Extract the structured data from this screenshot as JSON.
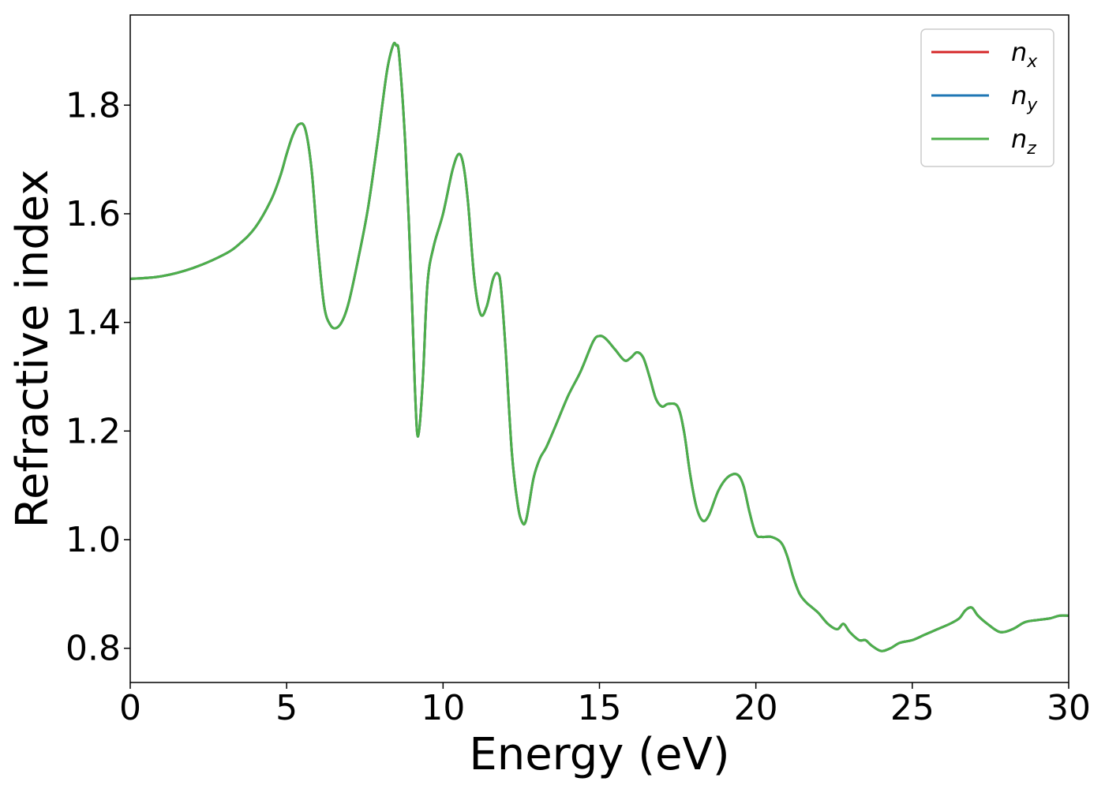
{
  "chart_data": {
    "type": "line",
    "xlabel": "Energy (eV)",
    "ylabel": "Refractive index",
    "xlim": [
      0,
      30
    ],
    "ylim": [
      0.737,
      1.966
    ],
    "xticks": [
      0,
      5,
      10,
      15,
      20,
      25,
      30
    ],
    "xtick_labels": [
      "0",
      "5",
      "10",
      "15",
      "20",
      "25",
      "30"
    ],
    "yticks": [
      0.8,
      1.0,
      1.2,
      1.4,
      1.6,
      1.8
    ],
    "ytick_labels": [
      "0.8",
      "1.0",
      "1.2",
      "1.4",
      "1.6",
      "1.8"
    ],
    "grid": false,
    "legend_position": "top-right",
    "x": [
      0,
      1,
      2,
      3,
      3.5,
      4,
      4.5,
      4.8,
      5.0,
      5.2,
      5.4,
      5.6,
      5.8,
      6.0,
      6.2,
      6.4,
      6.6,
      6.8,
      7.0,
      7.3,
      7.6,
      7.9,
      8.2,
      8.4,
      8.5,
      8.6,
      8.8,
      9.0,
      9.1,
      9.2,
      9.35,
      9.5,
      9.7,
      10.0,
      10.3,
      10.5,
      10.65,
      10.8,
      11.0,
      11.2,
      11.4,
      11.6,
      11.75,
      11.85,
      12.0,
      12.2,
      12.4,
      12.55,
      12.65,
      12.75,
      12.9,
      13.1,
      13.3,
      13.6,
      14.0,
      14.4,
      14.8,
      15.0,
      15.2,
      15.5,
      15.8,
      16.0,
      16.2,
      16.4,
      16.6,
      16.8,
      17.0,
      17.2,
      17.5,
      17.7,
      17.9,
      18.1,
      18.3,
      18.5,
      18.8,
      19.1,
      19.4,
      19.6,
      19.8,
      20.0,
      20.2,
      20.5,
      20.8,
      21.0,
      21.2,
      21.4,
      21.6,
      21.8,
      22.0,
      22.3,
      22.6,
      22.8,
      23.0,
      23.3,
      23.5,
      23.7,
      24.0,
      24.3,
      24.6,
      25.0,
      25.4,
      25.8,
      26.2,
      26.5,
      26.7,
      26.9,
      27.1,
      27.4,
      27.8,
      28.2,
      28.6,
      29.0,
      29.4,
      29.7,
      30.0
    ],
    "series": [
      {
        "name": "n",
        "subscript": "x",
        "color": "#d62728",
        "values": [
          1.48,
          1.485,
          1.5,
          1.525,
          1.545,
          1.575,
          1.625,
          1.67,
          1.71,
          1.745,
          1.765,
          1.755,
          1.68,
          1.54,
          1.43,
          1.395,
          1.39,
          1.405,
          1.44,
          1.52,
          1.61,
          1.73,
          1.86,
          1.91,
          1.91,
          1.89,
          1.72,
          1.45,
          1.28,
          1.19,
          1.29,
          1.47,
          1.54,
          1.6,
          1.68,
          1.71,
          1.69,
          1.62,
          1.48,
          1.415,
          1.43,
          1.48,
          1.49,
          1.465,
          1.35,
          1.16,
          1.06,
          1.03,
          1.035,
          1.065,
          1.115,
          1.15,
          1.17,
          1.21,
          1.265,
          1.31,
          1.365,
          1.375,
          1.37,
          1.35,
          1.33,
          1.335,
          1.345,
          1.335,
          1.3,
          1.26,
          1.245,
          1.25,
          1.245,
          1.2,
          1.12,
          1.06,
          1.035,
          1.045,
          1.09,
          1.115,
          1.12,
          1.1,
          1.05,
          1.01,
          1.005,
          1.005,
          0.995,
          0.97,
          0.93,
          0.9,
          0.885,
          0.875,
          0.865,
          0.845,
          0.835,
          0.845,
          0.83,
          0.815,
          0.815,
          0.805,
          0.795,
          0.8,
          0.81,
          0.815,
          0.825,
          0.835,
          0.845,
          0.855,
          0.87,
          0.875,
          0.86,
          0.845,
          0.83,
          0.835,
          0.848,
          0.852,
          0.855,
          0.86,
          0.86
        ]
      },
      {
        "name": "n",
        "subscript": "y",
        "color": "#1f77b4",
        "values": [
          1.48,
          1.485,
          1.5,
          1.525,
          1.545,
          1.575,
          1.625,
          1.67,
          1.71,
          1.745,
          1.765,
          1.755,
          1.68,
          1.54,
          1.43,
          1.395,
          1.39,
          1.405,
          1.44,
          1.52,
          1.61,
          1.73,
          1.86,
          1.91,
          1.91,
          1.89,
          1.72,
          1.45,
          1.28,
          1.19,
          1.29,
          1.47,
          1.54,
          1.6,
          1.68,
          1.71,
          1.69,
          1.62,
          1.48,
          1.415,
          1.43,
          1.48,
          1.49,
          1.465,
          1.35,
          1.16,
          1.06,
          1.03,
          1.035,
          1.065,
          1.115,
          1.15,
          1.17,
          1.21,
          1.265,
          1.31,
          1.365,
          1.375,
          1.37,
          1.35,
          1.33,
          1.335,
          1.345,
          1.335,
          1.3,
          1.26,
          1.245,
          1.25,
          1.245,
          1.2,
          1.12,
          1.06,
          1.035,
          1.045,
          1.09,
          1.115,
          1.12,
          1.1,
          1.05,
          1.01,
          1.005,
          1.005,
          0.995,
          0.97,
          0.93,
          0.9,
          0.885,
          0.875,
          0.865,
          0.845,
          0.835,
          0.845,
          0.83,
          0.815,
          0.815,
          0.805,
          0.795,
          0.8,
          0.81,
          0.815,
          0.825,
          0.835,
          0.845,
          0.855,
          0.87,
          0.875,
          0.86,
          0.845,
          0.83,
          0.835,
          0.848,
          0.852,
          0.855,
          0.86,
          0.86
        ]
      },
      {
        "name": "n",
        "subscript": "z",
        "color": "#4daf4a",
        "values": [
          1.48,
          1.485,
          1.5,
          1.525,
          1.545,
          1.575,
          1.625,
          1.67,
          1.71,
          1.745,
          1.765,
          1.755,
          1.68,
          1.54,
          1.43,
          1.395,
          1.39,
          1.405,
          1.44,
          1.52,
          1.61,
          1.73,
          1.86,
          1.91,
          1.91,
          1.89,
          1.72,
          1.45,
          1.28,
          1.19,
          1.29,
          1.47,
          1.54,
          1.6,
          1.68,
          1.71,
          1.69,
          1.62,
          1.48,
          1.415,
          1.43,
          1.48,
          1.49,
          1.465,
          1.35,
          1.16,
          1.06,
          1.03,
          1.035,
          1.065,
          1.115,
          1.15,
          1.17,
          1.21,
          1.265,
          1.31,
          1.365,
          1.375,
          1.37,
          1.35,
          1.33,
          1.335,
          1.345,
          1.335,
          1.3,
          1.26,
          1.245,
          1.25,
          1.245,
          1.2,
          1.12,
          1.06,
          1.035,
          1.045,
          1.09,
          1.115,
          1.12,
          1.1,
          1.05,
          1.01,
          1.005,
          1.005,
          0.995,
          0.97,
          0.93,
          0.9,
          0.885,
          0.875,
          0.865,
          0.845,
          0.835,
          0.845,
          0.83,
          0.815,
          0.815,
          0.805,
          0.795,
          0.8,
          0.81,
          0.815,
          0.825,
          0.835,
          0.845,
          0.855,
          0.87,
          0.875,
          0.86,
          0.845,
          0.83,
          0.835,
          0.848,
          0.852,
          0.855,
          0.86,
          0.86
        ]
      }
    ]
  }
}
